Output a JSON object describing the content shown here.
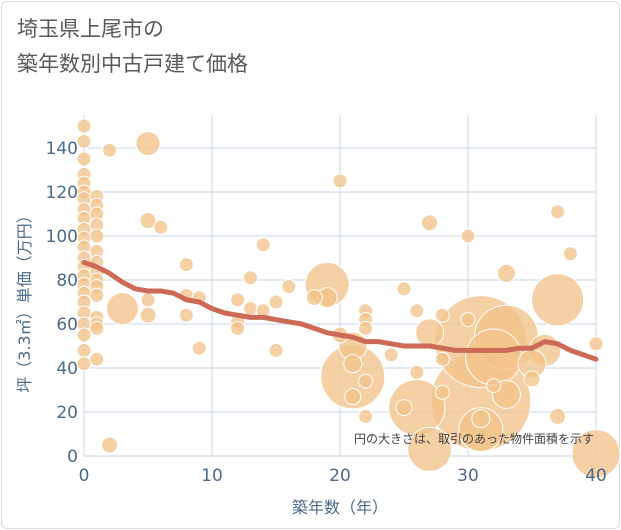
{
  "title": {
    "line1": "埼玉県上尾市の",
    "line2": "築年数別中古戸建て価格"
  },
  "note": "円の大きさは、取引のあった物件面積を示す",
  "colors": {
    "bubble_fill": "#f2c38a",
    "bubble_stroke": "#ffffff",
    "trend": "#cd6a56",
    "grid": "#c9d7e6",
    "tick": "#4a6a8a"
  },
  "chart_data": {
    "type": "scatter",
    "xlabel": "築年数（年）",
    "ylabel": "坪（3.3㎡）単価（万円）",
    "xlim": [
      0,
      40
    ],
    "ylim": [
      0,
      155
    ],
    "xticks": [
      0,
      10,
      20,
      30,
      40
    ],
    "yticks": [
      0,
      20,
      40,
      60,
      80,
      100,
      120,
      140
    ],
    "grid": true,
    "points": [
      {
        "x": 0,
        "y": 150,
        "r": 7
      },
      {
        "x": 0,
        "y": 143,
        "r": 7
      },
      {
        "x": 0,
        "y": 135,
        "r": 7
      },
      {
        "x": 0,
        "y": 128,
        "r": 7
      },
      {
        "x": 0,
        "y": 124,
        "r": 7
      },
      {
        "x": 0,
        "y": 120,
        "r": 7
      },
      {
        "x": 0,
        "y": 117,
        "r": 7
      },
      {
        "x": 0,
        "y": 112,
        "r": 7
      },
      {
        "x": 0,
        "y": 108,
        "r": 7
      },
      {
        "x": 0,
        "y": 103,
        "r": 7
      },
      {
        "x": 0,
        "y": 99,
        "r": 7
      },
      {
        "x": 0,
        "y": 95,
        "r": 7
      },
      {
        "x": 0,
        "y": 90,
        "r": 7
      },
      {
        "x": 0,
        "y": 86,
        "r": 7
      },
      {
        "x": 0,
        "y": 82,
        "r": 7
      },
      {
        "x": 0,
        "y": 78,
        "r": 7
      },
      {
        "x": 0,
        "y": 74,
        "r": 7
      },
      {
        "x": 0,
        "y": 70,
        "r": 7
      },
      {
        "x": 0,
        "y": 65,
        "r": 7
      },
      {
        "x": 0,
        "y": 60,
        "r": 7
      },
      {
        "x": 0,
        "y": 55,
        "r": 7
      },
      {
        "x": 0,
        "y": 48,
        "r": 7
      },
      {
        "x": 0,
        "y": 42,
        "r": 7
      },
      {
        "x": 1,
        "y": 118,
        "r": 7
      },
      {
        "x": 1,
        "y": 114,
        "r": 7
      },
      {
        "x": 1,
        "y": 110,
        "r": 7
      },
      {
        "x": 1,
        "y": 105,
        "r": 7
      },
      {
        "x": 1,
        "y": 100,
        "r": 7
      },
      {
        "x": 1,
        "y": 93,
        "r": 7
      },
      {
        "x": 1,
        "y": 88,
        "r": 7
      },
      {
        "x": 1,
        "y": 84,
        "r": 7
      },
      {
        "x": 1,
        "y": 80,
        "r": 7
      },
      {
        "x": 1,
        "y": 77,
        "r": 7
      },
      {
        "x": 1,
        "y": 73,
        "r": 7
      },
      {
        "x": 1,
        "y": 63,
        "r": 7
      },
      {
        "x": 1,
        "y": 60,
        "r": 7
      },
      {
        "x": 1,
        "y": 58,
        "r": 7
      },
      {
        "x": 1,
        "y": 44,
        "r": 7
      },
      {
        "x": 2,
        "y": 139,
        "r": 7
      },
      {
        "x": 2,
        "y": 5,
        "r": 8
      },
      {
        "x": 3,
        "y": 67,
        "r": 16
      },
      {
        "x": 5,
        "y": 142,
        "r": 12
      },
      {
        "x": 5,
        "y": 107,
        "r": 8
      },
      {
        "x": 5,
        "y": 71,
        "r": 7
      },
      {
        "x": 5,
        "y": 64,
        "r": 8
      },
      {
        "x": 6,
        "y": 104,
        "r": 7
      },
      {
        "x": 8,
        "y": 87,
        "r": 7
      },
      {
        "x": 8,
        "y": 73,
        "r": 7
      },
      {
        "x": 8,
        "y": 64,
        "r": 7
      },
      {
        "x": 9,
        "y": 72,
        "r": 7
      },
      {
        "x": 9,
        "y": 49,
        "r": 7
      },
      {
        "x": 12,
        "y": 71,
        "r": 7
      },
      {
        "x": 12,
        "y": 61,
        "r": 7
      },
      {
        "x": 12,
        "y": 58,
        "r": 7
      },
      {
        "x": 13,
        "y": 81,
        "r": 7
      },
      {
        "x": 13,
        "y": 67,
        "r": 7
      },
      {
        "x": 14,
        "y": 96,
        "r": 7
      },
      {
        "x": 14,
        "y": 66,
        "r": 7
      },
      {
        "x": 15,
        "y": 70,
        "r": 7
      },
      {
        "x": 15,
        "y": 48,
        "r": 7
      },
      {
        "x": 16,
        "y": 77,
        "r": 7
      },
      {
        "x": 18,
        "y": 72,
        "r": 8
      },
      {
        "x": 19,
        "y": 78,
        "r": 22
      },
      {
        "x": 19,
        "y": 72,
        "r": 10
      },
      {
        "x": 20,
        "y": 125,
        "r": 7
      },
      {
        "x": 20,
        "y": 55,
        "r": 8
      },
      {
        "x": 21,
        "y": 50,
        "r": 14
      },
      {
        "x": 21,
        "y": 42,
        "r": 9
      },
      {
        "x": 21,
        "y": 36,
        "r": 32
      },
      {
        "x": 21,
        "y": 27,
        "r": 8
      },
      {
        "x": 22,
        "y": 66,
        "r": 7
      },
      {
        "x": 22,
        "y": 62,
        "r": 7
      },
      {
        "x": 22,
        "y": 58,
        "r": 7
      },
      {
        "x": 22,
        "y": 34,
        "r": 7
      },
      {
        "x": 22,
        "y": 18,
        "r": 7
      },
      {
        "x": 24,
        "y": 46,
        "r": 7
      },
      {
        "x": 25,
        "y": 76,
        "r": 7
      },
      {
        "x": 25,
        "y": 22,
        "r": 8
      },
      {
        "x": 26,
        "y": 66,
        "r": 7
      },
      {
        "x": 26,
        "y": 38,
        "r": 7
      },
      {
        "x": 26,
        "y": 22,
        "r": 28
      },
      {
        "x": 27,
        "y": 106,
        "r": 8
      },
      {
        "x": 27,
        "y": 56,
        "r": 14
      },
      {
        "x": 27,
        "y": 3,
        "r": 22
      },
      {
        "x": 28,
        "y": 64,
        "r": 7
      },
      {
        "x": 28,
        "y": 44,
        "r": 7
      },
      {
        "x": 28,
        "y": 29,
        "r": 7
      },
      {
        "x": 30,
        "y": 100,
        "r": 7
      },
      {
        "x": 30,
        "y": 62,
        "r": 7
      },
      {
        "x": 31,
        "y": 52,
        "r": 46
      },
      {
        "x": 31,
        "y": 25,
        "r": 50
      },
      {
        "x": 31,
        "y": 17,
        "r": 9
      },
      {
        "x": 31,
        "y": 12,
        "r": 22
      },
      {
        "x": 32,
        "y": 45,
        "r": 28
      },
      {
        "x": 32,
        "y": 32,
        "r": 7
      },
      {
        "x": 33,
        "y": 83,
        "r": 9
      },
      {
        "x": 33,
        "y": 54,
        "r": 32
      },
      {
        "x": 33,
        "y": 28,
        "r": 14
      },
      {
        "x": 35,
        "y": 42,
        "r": 14
      },
      {
        "x": 35,
        "y": 35,
        "r": 8
      },
      {
        "x": 36,
        "y": 48,
        "r": 16
      },
      {
        "x": 37,
        "y": 111,
        "r": 7
      },
      {
        "x": 37,
        "y": 71,
        "r": 26
      },
      {
        "x": 37,
        "y": 18,
        "r": 8
      },
      {
        "x": 38,
        "y": 92,
        "r": 7
      },
      {
        "x": 40,
        "y": 51,
        "r": 7
      },
      {
        "x": 40,
        "y": 1,
        "r": 24
      }
    ],
    "trend": [
      {
        "x": 0,
        "y": 88
      },
      {
        "x": 1,
        "y": 86
      },
      {
        "x": 2,
        "y": 83
      },
      {
        "x": 3,
        "y": 79
      },
      {
        "x": 4,
        "y": 76
      },
      {
        "x": 5,
        "y": 75
      },
      {
        "x": 6,
        "y": 75
      },
      {
        "x": 7,
        "y": 74
      },
      {
        "x": 8,
        "y": 71
      },
      {
        "x": 9,
        "y": 70
      },
      {
        "x": 10,
        "y": 67
      },
      {
        "x": 11,
        "y": 65
      },
      {
        "x": 12,
        "y": 64
      },
      {
        "x": 13,
        "y": 63
      },
      {
        "x": 14,
        "y": 63
      },
      {
        "x": 15,
        "y": 62
      },
      {
        "x": 16,
        "y": 61
      },
      {
        "x": 17,
        "y": 60
      },
      {
        "x": 18,
        "y": 58
      },
      {
        "x": 19,
        "y": 56
      },
      {
        "x": 20,
        "y": 55
      },
      {
        "x": 21,
        "y": 54
      },
      {
        "x": 22,
        "y": 52
      },
      {
        "x": 23,
        "y": 52
      },
      {
        "x": 24,
        "y": 51
      },
      {
        "x": 25,
        "y": 50
      },
      {
        "x": 26,
        "y": 50
      },
      {
        "x": 27,
        "y": 50
      },
      {
        "x": 28,
        "y": 49
      },
      {
        "x": 29,
        "y": 48
      },
      {
        "x": 30,
        "y": 48
      },
      {
        "x": 31,
        "y": 48
      },
      {
        "x": 32,
        "y": 48
      },
      {
        "x": 33,
        "y": 48
      },
      {
        "x": 34,
        "y": 49
      },
      {
        "x": 35,
        "y": 49
      },
      {
        "x": 36,
        "y": 52
      },
      {
        "x": 37,
        "y": 51
      },
      {
        "x": 38,
        "y": 48
      },
      {
        "x": 39,
        "y": 46
      },
      {
        "x": 40,
        "y": 44
      }
    ]
  }
}
